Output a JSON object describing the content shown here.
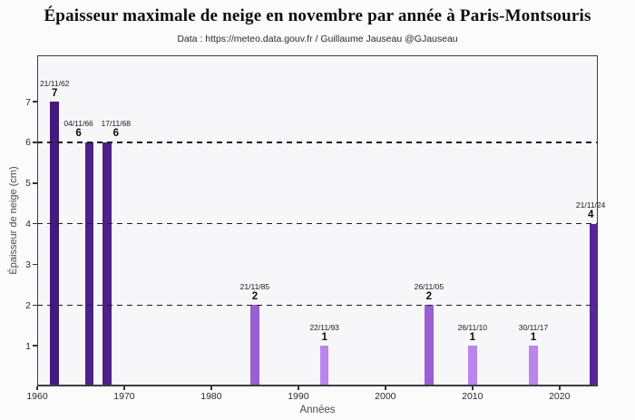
{
  "header": {
    "title": "Épaisseur maximale de neige en novembre par année à Paris-Montsouris",
    "subtitle": "Data : https://meteo.data.gouv.fr / Guillaume Jauseau @GJauseau"
  },
  "colors": {
    "plot_background": "#f7f6f9",
    "figure_background": "#fbfbfc",
    "frame": "#3e3e3e",
    "gridline": "#1c1c1c",
    "value_7": "#431a7d",
    "value_6": "#4d2189",
    "value_4": "#57279a",
    "value_2": "#9a5fd3",
    "value_1": "#bb85ec"
  },
  "chart_data": {
    "type": "bar",
    "title": "Épaisseur maximale de neige en novembre par année à Paris-Montsouris",
    "subtitle": "Data : https://meteo.data.gouv.fr / Guillaume Jauseau @GJauseau",
    "xlabel": "Années",
    "ylabel": "Épaisseur de neige (cm)",
    "xlim": [
      1960,
      2024.4
    ],
    "ylim": [
      0,
      8.14
    ],
    "x_ticks": [
      1960,
      1970,
      1980,
      1990,
      2000,
      2010,
      2020
    ],
    "y_ticks": [
      1,
      2,
      3,
      4,
      5,
      6,
      7
    ],
    "gridlines_y": [
      2,
      4,
      6
    ],
    "grid": "dashed horizontal at 2, 4, 6, drawn over bars",
    "legend": "none",
    "bar_width_years": 1,
    "points": [
      {
        "date": "21/11/62",
        "year": 1962,
        "value": 7,
        "color": "#431a7d",
        "label_dx": 0
      },
      {
        "date": "04/11/66",
        "year": 1966,
        "value": 6,
        "color": "#4d2189",
        "label_dx": -12
      },
      {
        "date": "17/11/68",
        "year": 1968,
        "value": 6,
        "color": "#4d2189",
        "label_dx": 10
      },
      {
        "date": "21/11/85",
        "year": 1985,
        "value": 2,
        "color": "#9a5fd3",
        "label_dx": 0
      },
      {
        "date": "22/11/93",
        "year": 1993,
        "value": 1,
        "color": "#bb85ec",
        "label_dx": 0
      },
      {
        "date": "26/11/05",
        "year": 2005,
        "value": 2,
        "color": "#9a5fd3",
        "label_dx": 0
      },
      {
        "date": "26/11/10",
        "year": 2010,
        "value": 1,
        "color": "#bb85ec",
        "label_dx": 0
      },
      {
        "date": "30/11/17",
        "year": 2017,
        "value": 1,
        "color": "#bb85ec",
        "label_dx": 0
      },
      {
        "date": "21/11/24",
        "year": 2024,
        "value": 4,
        "color": "#57279a",
        "label_dx": -4
      }
    ]
  }
}
